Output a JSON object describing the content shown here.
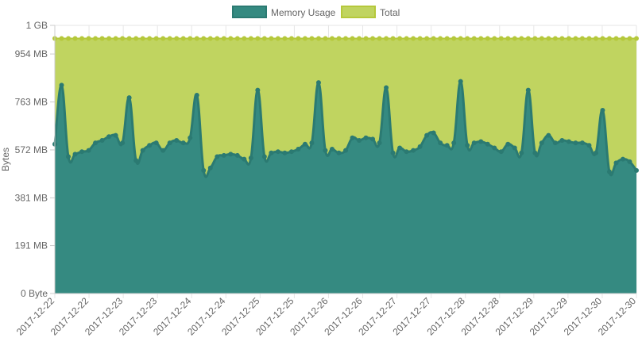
{
  "chart_data": {
    "type": "area",
    "title": "",
    "ylabel": "Bytes",
    "xlabel": "",
    "ylim_mb": [
      0,
      1068
    ],
    "y_ticks": [
      {
        "value": 0,
        "label": "0 Byte"
      },
      {
        "value": 191,
        "label": "191 MB"
      },
      {
        "value": 381,
        "label": "381 MB"
      },
      {
        "value": 572,
        "label": "572 MB"
      },
      {
        "value": 763,
        "label": "763 MB"
      },
      {
        "value": 954,
        "label": "954 MB"
      },
      {
        "value": 1068,
        "label": "1 GB"
      }
    ],
    "x_tick_labels": [
      "2017-12-22",
      "2017-12-22",
      "2017-12-23",
      "2017-12-23",
      "2017-12-24",
      "2017-12-24",
      "2017-12-25",
      "2017-12-25",
      "2017-12-26",
      "2017-12-26",
      "2017-12-27",
      "2017-12-27",
      "2017-12-28",
      "2017-12-28",
      "2017-12-29",
      "2017-12-29",
      "2017-12-30",
      "2017-12-30"
    ],
    "grid": true,
    "legend_position": "top",
    "series": [
      {
        "name": "Memory Usage",
        "color": "#358a81",
        "fill": "#358a81",
        "values": [
          595,
          830,
          545,
          555,
          565,
          570,
          600,
          610,
          625,
          630,
          600,
          780,
          530,
          570,
          590,
          600,
          570,
          600,
          610,
          600,
          620,
          790,
          490,
          500,
          545,
          550,
          555,
          550,
          535,
          540,
          810,
          545,
          560,
          565,
          560,
          565,
          575,
          595,
          600,
          840,
          570,
          575,
          560,
          570,
          620,
          610,
          620,
          615,
          600,
          820,
          560,
          580,
          565,
          570,
          585,
          630,
          640,
          600,
          590,
          600,
          845,
          590,
          600,
          605,
          595,
          580,
          565,
          595,
          580,
          560,
          810,
          560,
          600,
          630,
          600,
          610,
          605,
          600,
          600,
          590,
          560,
          730,
          485,
          520,
          535,
          525,
          490
        ]
      },
      {
        "name": "Total",
        "color": "#b5c83b",
        "fill": "#c0d460",
        "constant": 1016
      }
    ]
  }
}
